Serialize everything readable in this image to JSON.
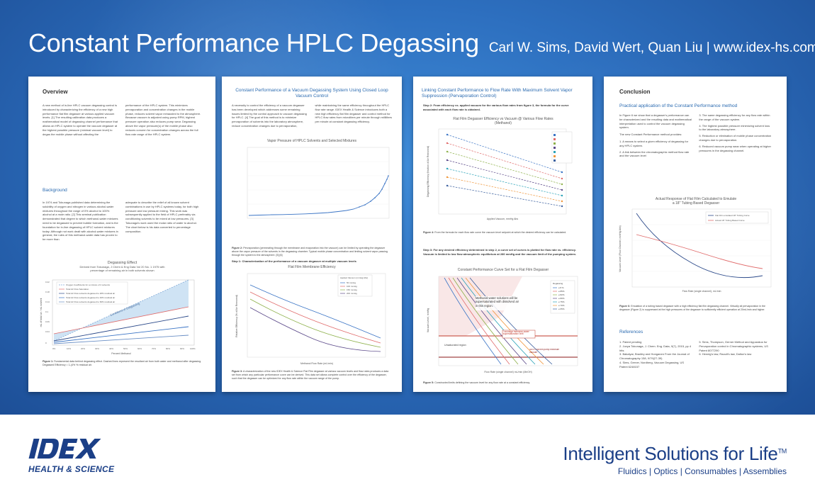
{
  "header": {
    "title": "Constant Performance HPLC Degassing",
    "authors": "Carl W. Sims, David Wert, Quan Liu | www.idex-hs.com"
  },
  "panel1": {
    "overview_title": "Overview",
    "overview_col1": "A new method of in-line HPLC vacuum degassing control is introduced by characterizing the efficiency of a new high performance flat film degasser at various applied vacuum levels. [1] The resulting calibration data produces a mathematical model of degassing channel performance that allows an HPLC system to operate the vacuum degasser at the highest possible pressure (minimal vacuum level) to degas the mobile phase without affecting the",
    "overview_col2": "performance of the HPLC system. This minimizes pervaporation and concentration changes in the mobile phase, reduces solvent vapor exhausted to the atmosphere. Because vacuum is adjusted using pump RPM, highest pressure operation also reduces pump wear. Degassing above the vapor pressure(s) of the mobile phase also reduces concern for concentration changes across the full flow rate range of the HPLC system.",
    "background_title": "Background",
    "background_col1": "In 1974 and Tokunaga published data determining the solubility of oxygen and nitrogen in various alcohol-water mixtures throughout the range of 0% alcohol to 100% alcohol at a mole ratio. [2] This seminal publication demonstrated that degree to which methanol-water mixtures need to be degassed to prevent bubble formation, and is the foundation for in-line degassing of HPLC solvent mixtures today. Although not work dealt with alcohol-water mixtures in general, the rules of this methanol-water data has proven to be more than",
    "background_col2": "adequate to describe the relief of all known solvent combinations in use by HPLC systems today, for both high pressure and low pressure mixing. This work was subsequently applied to the field of HPLC preferably via conditioning solvents to be mixed at low pressures. [3] Tokunaga's work used the molar ratio of water to alcohol. The chart below is his data converted to percentage composition.",
    "chart_title": "Degassing Effect",
    "chart_sub1": "Derived from Tokunaga, J Chem & Eng Data Vol 20 No. 1 1975 with",
    "chart_sub2": "percentage of remaining air in both solvents shown",
    "legend": [
      "Oxygen Coefficients for a mixture of 2 solvents",
      "Total Air Flow Saturation",
      "Total Air Flow solvents degassed to 20% residual air",
      "Total Air Flow solvents degassed to 40% residual air",
      "Total Air Flow solvents degassed to 60% residual air"
    ],
    "band_label": "Conditions of Outgassing",
    "xlabel": "Percent Methanol",
    "ylabel": "mL of total air / mL solvent",
    "caption_bold": "Figure 1:",
    "caption": "Fundamental data behind degassing effect. Dashed lines represent the resultant air from both water and methanol after degassing. Degassed Efficiency = 1-(4% % residual air."
  },
  "panel2": {
    "title": "Constant Performance of a Vacuum Degassing System Using Closed Loop Vacuum Control",
    "intro_col1": "A necessity to control the efficiency of a vacuum degasser has been developed which addresses some remaining issues limited by the control approach to vacuum degassing for HPLC. [4] The goal of this method is to minimize pervaporation of solvents into the laboratory atmosphere, reduce concentration changes due to pervaporation,",
    "intro_col2": "while maintaining the same efficiency throughout the HPLC flow rate range. IDEX Health & Science introduces both a new high efficiency flat film degasser and control method for HPLC flow rates from microliters per minute through milliliters per minute at constant degassing efficiency.",
    "vp_chart_title": "Vapor Pressure of HPLC Solvents and Selected Mixtures",
    "fig2_bold": "Figure 2:",
    "fig2": "Pervaporation (permeating through the membrane and evaporation into the vacuum) can be limited by operating the degasser above the vapor pressure of the solvents in the degassing chamber. Typical mobile phase concentration and limiting solvent vapor passing through the system to the atmosphere. [5] [6]",
    "step1": "Step 1: Characterization of the performance of a vacuum degasser at multiple vacuum levels",
    "eff_chart_title": "Flat Film Membrane Efficiency",
    "legend_title": "Applied Vacuum (mmHg Abs)",
    "legend": [
      "50 mmHg",
      "100 mmHg",
      "150 mmHg",
      "200 mmHg"
    ],
    "xlabel": "Methanol Flow Rate (mL/min)",
    "ylabel": "Relative Efficiency (% of Air Removed)",
    "fig3_bold": "Figure 3:",
    "fig3": "A characterization of the new IDEX Health & Science Flat Film degasser at various vacuum levels and flow rates produces a data set from which any particular performance curve can be derived. This data set allows complete control over the efficiency of the degasser, such that the degasser can be optimized for any flow rate within the vacuum range of the pump."
  },
  "panel3": {
    "title": "Linking Constant Performance to Flow Rate With Maximum Solvent Vapor Suppression (Pervaporation Control)",
    "step2": "Step 2: From efficiency vs. applied vacuum for the various flow rates from figure 3, the formula for the curve associated with each flow rate is obtained.",
    "chart1_title": "Flat Film Degasser Efficiency vs Vacuum @ Various Flow Rates",
    "chart1_sub": "(Methanol)",
    "chart1_xlabel": "Applied Vacuum, mmHg Abs",
    "chart1_ylabel": "Degassing Efficiency (fraction of Air Removed)",
    "fig4_bold": "Figure 4:",
    "fig4": "From the formula for each flow rate curve the vacuum level setpoint at which the desired efficiency can be calculated.",
    "step3": "Step 3: For any desired efficiency determined in step 2, a curve set of curves is plotted for flow rate vs. efficiency. Vacuum is limited to low flow atmospheric equilibrium at 280 mmHg and the vacuum limit of the pumping system.",
    "chart2_title": "Constant Performance Curve Set for a Flat Film Degasser",
    "legend_title": "Degassing",
    "legend": [
      "≥ 8 %",
      "≥ 85%",
      "≥ 82%",
      "≥ 80%",
      "≥ 75%",
      "≥ 70%",
      "≥ 65%"
    ],
    "annot1": "Methanol-water solutions will be supersaturated with dissolved air in this region.",
    "annot2": "Tokunaga methanol-water supersaturation limit",
    "annot3": "Unsaturated region",
    "annot4": "IDEX Flat film pump minimum vacuum",
    "chart2_xlabel": "Flow Rate (single channel) mL/min (MeOH)",
    "chart2_ylabel": "Vacuum Level, mmHg",
    "fig5_bold": "Figure 5:",
    "fig5": "Constructed limits defining the vacuum level for any flow rate at a constant efficiency."
  },
  "panel4": {
    "conclusion_title": "Conclusion",
    "practical_title": "Practical application of the Constant Performance method",
    "col1_intro": "In Figure 6 we show that a degasser's performance can be characterized and the resulting data and mathematical interpretation used to control the vacuum degassing system.",
    "col1_intro2": "The new Constant Performance method provides:",
    "col1_items": [
      "1. A means to select a given efficiency of degassing for any HPLC system.",
      "2. A link between the chromatographic method flow rate and the vacuum level"
    ],
    "col2_items": [
      "3. The same degassing efficiency for any flow rate within the range of the vacuum system.",
      "4. The highest possible pressure minimizing solvent loss to the laboratory atmosphere.",
      "5. Reduction or elimination of mobile phase concentration changes due to pervaporation.",
      "6. Reduced vacuum pump wear when operating at higher pressures in the degassing channel."
    ],
    "chart_title": "Actual Response of Flat Film Calculated to Emulate",
    "chart_sub": "a 18\" Tubing Based Degasser",
    "legend": [
      "Flat Film emulated 18\" Tubing Curve",
      "Actual 18\" Tubing Based Curve"
    ],
    "chart_xlabel": "Flow Rate (single channel), mL/min",
    "chart_ylabel": "Vacuum Level (Flow Channel, mmHg Abs)",
    "fig6_bold": "Figure 6:",
    "fig6": "Emulation of a tubing based degasser with a high efficiency flat film degassing channel. Virtually all pervaporation in the degasser (Figure 2) is suppressed at the high pressures of the degasser to sufficiently efficient operation at 20mL/min and higher.",
    "references_title": "References",
    "refs_col1": [
      "1. Patent pending",
      "2. Junya Tokunaga, J. Chem. Eng. Data, 9(7), 2015, pp 4 htts",
      "3. Bakalyar, Bradley and Honganen From the Journal of Chromatography 158, 9/79(27-39)",
      "4. Sims, Gerner, Nordberg, Vacuum Degassing, US Patent 6248157"
    ],
    "refs_col2": [
      "5. Sims, Thompson, Gerner Method and Apparatus for Pervaporation control in Chromatographic systems, US Patent 8077290",
      "6. Hennig's law, Raoult's law, Dalton's law"
    ]
  },
  "footer": {
    "logo_text": "IDEX",
    "logo_sub": "HEALTH & SCIENCE",
    "tagline": "Intelligent Solutions for Life",
    "tagline_mark": "TM",
    "subtagline": "Fluidics | Optics | Consumables | Assemblies"
  }
}
